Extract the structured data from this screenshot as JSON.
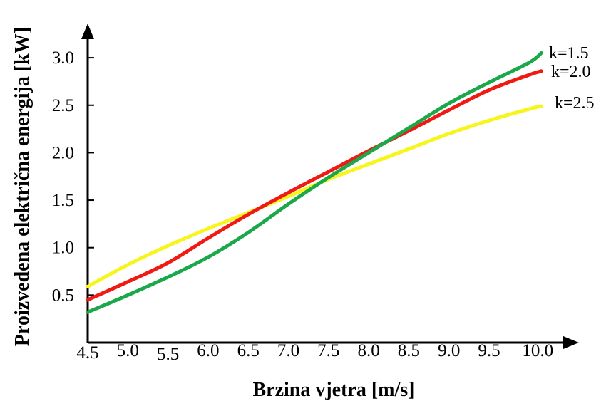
{
  "chart_data": {
    "type": "line",
    "title": "",
    "xlabel": "Brzina vjetra [m/s]",
    "ylabel": "Proizvedena električna energija [kW]",
    "xlim": [
      4.5,
      10.7
    ],
    "ylim": [
      0.0,
      3.33
    ],
    "x_ticks": [
      "4.5",
      "5.0",
      "5.5",
      "6.0",
      "6.5",
      "7.0",
      "7.5",
      "8.0",
      "8.5",
      "9.0",
      "9.5",
      "10.0"
    ],
    "y_ticks": [
      "0.5",
      "1.0",
      "1.5",
      "2.0",
      "2.5",
      "3.0"
    ],
    "x": [
      4.5,
      5.0,
      5.5,
      6.0,
      6.5,
      7.0,
      7.5,
      8.0,
      8.5,
      9.0,
      9.5,
      10.0,
      10.15
    ],
    "series": [
      {
        "name": "k=1.5",
        "color": "#1aa84a",
        "values": [
          0.32,
          0.5,
          0.69,
          0.9,
          1.16,
          1.46,
          1.74,
          2.0,
          2.26,
          2.52,
          2.74,
          2.95,
          3.05
        ]
      },
      {
        "name": "k=2.0",
        "color": "#f01a14",
        "values": [
          0.45,
          0.64,
          0.84,
          1.1,
          1.35,
          1.58,
          1.8,
          2.02,
          2.23,
          2.45,
          2.66,
          2.82,
          2.86
        ]
      },
      {
        "name": "k=2.5",
        "color": "#f7f51b",
        "values": [
          0.59,
          0.82,
          1.02,
          1.2,
          1.37,
          1.54,
          1.72,
          1.88,
          2.04,
          2.2,
          2.34,
          2.46,
          2.49
        ]
      }
    ],
    "grid": false,
    "legend": "line-end labels"
  }
}
